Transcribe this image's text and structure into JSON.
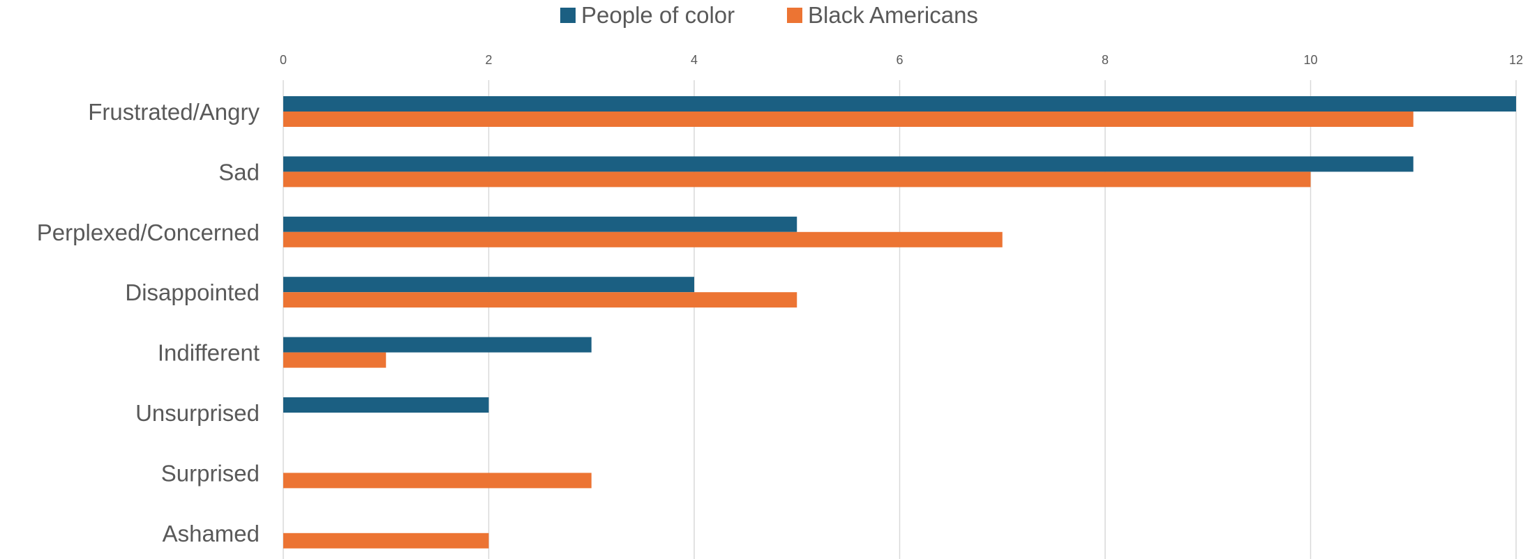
{
  "chart_data": {
    "type": "bar",
    "orientation": "horizontal",
    "categories": [
      "Frustrated/Angry",
      "Sad",
      "Perplexed/Concerned",
      "Disappointed",
      "Indifferent",
      "Unsurprised",
      "Surprised",
      "Ashamed"
    ],
    "series": [
      {
        "name": "People of color",
        "color": "#1b5f82",
        "values": [
          12,
          11,
          5,
          4,
          3,
          2,
          0,
          0
        ]
      },
      {
        "name": "Black Americans",
        "color": "#ec7433",
        "values": [
          11,
          10,
          7,
          5,
          1,
          0,
          3,
          2
        ]
      }
    ],
    "xlim": [
      0,
      12
    ],
    "xticks": [
      0,
      2,
      4,
      6,
      8,
      10,
      12
    ],
    "x_axis_position": "top",
    "grid": true,
    "legend": "top-center"
  }
}
